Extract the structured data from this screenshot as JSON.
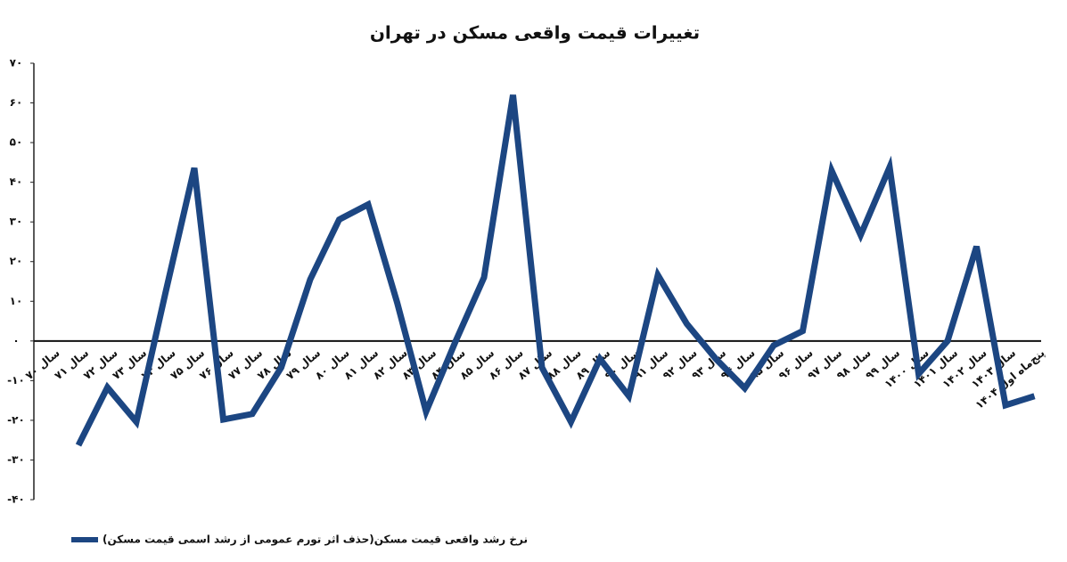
{
  "chart_data": {
    "type": "line",
    "title": "تغییرات قیمت واقعی مسکن در تهران",
    "categories": [
      "سال ۷۰",
      "سال ۷۱",
      "سال ۷۲",
      "سال ۷۳",
      "سال ۷۴",
      "سال ۷۵",
      "سال ۷۶",
      "سال ۷۷",
      "سال ۷۸",
      "سال ۷۹",
      "سال ۸۰",
      "سال ۸۱",
      "سال ۸۲",
      "سال ۸۳",
      "سال ۸۴",
      "سال ۸۵",
      "سال ۸۶",
      "سال ۸۷",
      "سال ۸۸",
      "سال ۸۹",
      "سال ۹۰",
      "سال ۹۱",
      "سال ۹۲",
      "سال ۹۳",
      "سال ۹۴",
      "سال ۹۵",
      "سال ۹۶",
      "سال ۹۷",
      "سال ۹۸",
      "سال ۹۹",
      "سال ۱۴۰۰",
      "سال ۱۴۰۱",
      "سال ۱۴۰۲",
      "سال ۱۴۰۳",
      "پنج‌ماه اول ۱۴۰۴"
    ],
    "series": [
      {
        "name": "نرخ رشد واقعی قیمت مسکن(حذف اثر تورم عمومی از رشد اسمی قیمت مسکن)",
        "color": "#1c4682",
        "values": [
          null,
          -26.3,
          -11.7,
          -20.4,
          12,
          43.6,
          -19.8,
          -18.4,
          -6.7,
          15.5,
          30.6,
          34.4,
          9.7,
          -17.8,
          -0.4,
          16,
          62,
          -6.7,
          -20.4,
          -4.5,
          -13.9,
          16.6,
          4.3,
          -4.5,
          -11.9,
          -1.1,
          2.5,
          42.9,
          26.7,
          43.8,
          -8.3,
          0,
          23.8,
          -16.2,
          -13.9
        ]
      }
    ],
    "ylim": [
      -40,
      70
    ],
    "yticks": [
      {
        "value": -40,
        "label": "-۴۰"
      },
      {
        "value": -30,
        "label": "-۳۰"
      },
      {
        "value": -20,
        "label": "-۲۰"
      },
      {
        "value": -10,
        "label": "-۱۰"
      },
      {
        "value": 0,
        "label": "۰"
      },
      {
        "value": 10,
        "label": "۱۰"
      },
      {
        "value": 20,
        "label": "۲۰"
      },
      {
        "value": 30,
        "label": "۳۰"
      },
      {
        "value": 40,
        "label": "۴۰"
      },
      {
        "value": 50,
        "label": "۵۰"
      },
      {
        "value": 60,
        "label": "۶۰"
      },
      {
        "value": 70,
        "label": "۷۰"
      }
    ]
  }
}
